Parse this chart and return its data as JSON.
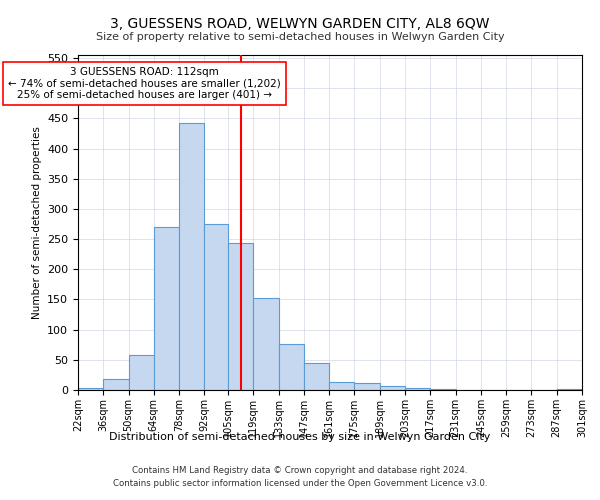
{
  "title": "3, GUESSENS ROAD, WELWYN GARDEN CITY, AL8 6QW",
  "subtitle": "Size of property relative to semi-detached houses in Welwyn Garden City",
  "xlabel": "Distribution of semi-detached houses by size in Welwyn Garden City",
  "ylabel": "Number of semi-detached properties",
  "footer1": "Contains HM Land Registry data © Crown copyright and database right 2024.",
  "footer2": "Contains public sector information licensed under the Open Government Licence v3.0.",
  "annotation_line1": "3 GUESSENS ROAD: 112sqm",
  "annotation_line2": "← 74% of semi-detached houses are smaller (1,202)",
  "annotation_line3": "25% of semi-detached houses are larger (401) →",
  "bar_color": "#c5d8f0",
  "bar_edgecolor": "#5b9bd5",
  "redline_x": 112,
  "ylim": [
    0,
    555
  ],
  "yticks": [
    0,
    50,
    100,
    150,
    200,
    250,
    300,
    350,
    400,
    450,
    500,
    550
  ],
  "bin_edges": [
    22,
    36,
    50,
    64,
    78,
    92,
    105,
    119,
    133,
    147,
    161,
    175,
    189,
    203,
    217,
    231,
    245,
    259,
    273,
    287,
    301
  ],
  "bar_heights": [
    3,
    18,
    58,
    270,
    443,
    275,
    244,
    153,
    76,
    45,
    13,
    11,
    6,
    3,
    1,
    0,
    0,
    0,
    0,
    2
  ],
  "tick_labels": [
    "22sqm",
    "36sqm",
    "50sqm",
    "64sqm",
    "78sqm",
    "92sqm",
    "105sqm",
    "119sqm",
    "133sqm",
    "147sqm",
    "161sqm",
    "175sqm",
    "189sqm",
    "203sqm",
    "217sqm",
    "231sqm",
    "245sqm",
    "259sqm",
    "273sqm",
    "287sqm",
    "301sqm"
  ]
}
